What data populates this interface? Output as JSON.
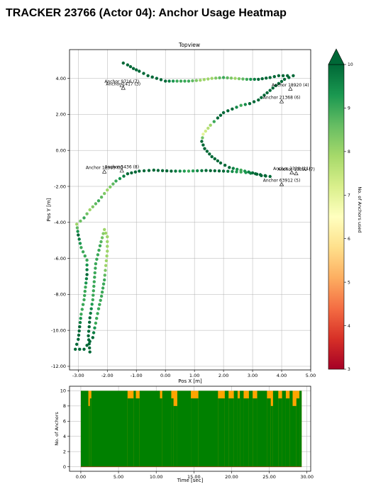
{
  "page": {
    "title": "TRACKER 23766 (Actor 04): Anchor Usage Heatmap"
  },
  "chart_data": [
    {
      "type": "scatter",
      "title": "Topview",
      "xlabel": "Pos X [m]",
      "ylabel": "Pos Y [m]",
      "xlim": [
        -3.3,
        5.0
      ],
      "ylim": [
        -12.2,
        5.6
      ],
      "xticks": [
        "-3.00",
        "-2.00",
        "-1.00",
        "0.00",
        "1.00",
        "2.00",
        "3.00",
        "4.00",
        "5.00"
      ],
      "xtick_values": [
        -3,
        -2,
        -1,
        0,
        1,
        2,
        3,
        4,
        5
      ],
      "yticks": [
        "-12.00",
        "-10.00",
        "-8.00",
        "-6.00",
        "-4.00",
        "-2.00",
        "0.00",
        "2.00",
        "4.00"
      ],
      "ytick_values": [
        -12,
        -10,
        -8,
        -6,
        -4,
        -2,
        0,
        2,
        4
      ],
      "grid": true,
      "colormap": {
        "name": "RdYlGn",
        "min": 3,
        "max": 10,
        "label": "No. of Anchors used",
        "ticks": [
          "3",
          "4",
          "5",
          "6",
          "7",
          "8",
          "9",
          "10"
        ]
      },
      "anchors": [
        {
          "label": "Anchor 18920 (4)",
          "x": 4.3,
          "y": 3.4
        },
        {
          "label": "Anchor 21368 (6)",
          "x": 4.0,
          "y": 2.7
        },
        {
          "label": "Anchor 9716 (7)",
          "x": -1.5,
          "y": 3.6
        },
        {
          "label": "Anchor 1417 (3)",
          "x": -1.45,
          "y": 3.45
        },
        {
          "label": "Anchor 63912 (5)",
          "x": 4.0,
          "y": -1.9
        },
        {
          "label": "Anchor 12989 (8)",
          "x": -2.1,
          "y": -1.2
        },
        {
          "label": "Anchor 5436 (8)",
          "x": -1.5,
          "y": -1.15
        },
        {
          "label": "Anchor 13392 (7)",
          "x": 4.5,
          "y": -1.3
        },
        {
          "label": "Anchor 3338 (11)",
          "x": 4.35,
          "y": -1.25
        }
      ],
      "path": [
        [
          -1.45,
          4.85
        ],
        [
          -1.3,
          4.75
        ],
        [
          -1.1,
          4.55
        ],
        [
          -0.9,
          4.4
        ],
        [
          -0.6,
          4.15
        ],
        [
          -0.3,
          4.0
        ],
        [
          0.0,
          3.85
        ],
        [
          0.4,
          3.85
        ],
        [
          0.8,
          3.85
        ],
        [
          1.2,
          3.9
        ],
        [
          1.6,
          4.0
        ],
        [
          2.0,
          4.05
        ],
        [
          2.4,
          4.0
        ],
        [
          2.8,
          3.95
        ],
        [
          3.2,
          3.95
        ],
        [
          3.6,
          4.05
        ],
        [
          3.9,
          4.15
        ],
        [
          4.2,
          4.15
        ],
        [
          4.4,
          4.15
        ],
        [
          4.1,
          3.95
        ],
        [
          3.8,
          3.6
        ],
        [
          3.5,
          3.2
        ],
        [
          3.2,
          2.8
        ],
        [
          2.9,
          2.6
        ],
        [
          2.6,
          2.5
        ],
        [
          2.3,
          2.3
        ],
        [
          2.0,
          2.1
        ],
        [
          1.8,
          1.8
        ],
        [
          1.55,
          1.4
        ],
        [
          1.3,
          0.9
        ],
        [
          1.25,
          0.5
        ],
        [
          1.35,
          0.1
        ],
        [
          1.6,
          -0.35
        ],
        [
          1.9,
          -0.7
        ],
        [
          2.2,
          -0.95
        ],
        [
          2.6,
          -1.1
        ],
        [
          3.0,
          -1.25
        ],
        [
          3.3,
          -1.4
        ],
        [
          3.6,
          -1.45
        ],
        [
          3.1,
          -1.3
        ],
        [
          2.6,
          -1.2
        ],
        [
          2.0,
          -1.15
        ],
        [
          1.4,
          -1.12
        ],
        [
          0.8,
          -1.15
        ],
        [
          0.2,
          -1.15
        ],
        [
          -0.4,
          -1.1
        ],
        [
          -0.9,
          -1.15
        ],
        [
          -1.3,
          -1.3
        ],
        [
          -1.7,
          -1.7
        ],
        [
          -2.0,
          -2.2
        ],
        [
          -2.3,
          -2.8
        ],
        [
          -2.6,
          -3.3
        ],
        [
          -2.8,
          -3.75
        ],
        [
          -3.05,
          -4.1
        ],
        [
          -3.0,
          -4.7
        ],
        [
          -2.9,
          -5.4
        ],
        [
          -2.7,
          -6.1
        ],
        [
          -2.7,
          -6.9
        ],
        [
          -2.75,
          -7.6
        ],
        [
          -2.8,
          -8.3
        ],
        [
          -2.9,
          -9.1
        ],
        [
          -2.95,
          -9.8
        ],
        [
          -3.0,
          -10.5
        ],
        [
          -3.1,
          -11.05
        ],
        [
          -2.8,
          -11.05
        ],
        [
          -2.5,
          -10.4
        ],
        [
          -2.4,
          -9.6
        ],
        [
          -2.3,
          -8.8
        ],
        [
          -2.2,
          -8.1
        ],
        [
          -2.1,
          -7.2
        ],
        [
          -2.05,
          -6.4
        ],
        [
          -2.0,
          -5.6
        ],
        [
          -2.0,
          -4.8
        ],
        [
          -2.1,
          -4.4
        ],
        [
          -2.25,
          -5.3
        ],
        [
          -2.4,
          -6.3
        ],
        [
          -2.45,
          -7.3
        ],
        [
          -2.5,
          -8.3
        ],
        [
          -2.6,
          -9.3
        ],
        [
          -2.65,
          -10.3
        ],
        [
          -2.6,
          -11.2
        ]
      ],
      "path_greenness": [
        10,
        10,
        10,
        10,
        10,
        10,
        10,
        9,
        9,
        8,
        8,
        9,
        8,
        9,
        10,
        10,
        10,
        10,
        10,
        10,
        10,
        10,
        10,
        10,
        9,
        10,
        10,
        10,
        8,
        7,
        10,
        10,
        10,
        10,
        10,
        9,
        10,
        10,
        10,
        10,
        9,
        10,
        10,
        9,
        10,
        10,
        10,
        10,
        9,
        8,
        9,
        8,
        9,
        8,
        10,
        9,
        9,
        10,
        9,
        9,
        9,
        10,
        10,
        10,
        10,
        10,
        9,
        9,
        9,
        9,
        8,
        8,
        8,
        8,
        9,
        9,
        9,
        9,
        10,
        10,
        10
      ]
    },
    {
      "type": "area",
      "xlabel": "Time [sec]",
      "ylabel": "No. of Anchors",
      "xlim": [
        -1.5,
        30.5
      ],
      "ylim": [
        -0.6,
        10.6
      ],
      "xticks": [
        "0.00",
        "5.00",
        "10.00",
        "15.00",
        "20.00",
        "25.00",
        "30.00"
      ],
      "xtick_values": [
        0,
        5,
        10,
        15,
        20,
        25,
        30
      ],
      "yticks": [
        "0",
        "2",
        "4",
        "6",
        "8",
        "10"
      ],
      "ytick_values": [
        0,
        2,
        4,
        6,
        8,
        10
      ],
      "grid": true,
      "colors": {
        "anchors_used": "#008000",
        "missing": "#ffa500"
      },
      "segments": [
        [
          0.0,
          1.0,
          10
        ],
        [
          1.0,
          1.2,
          8
        ],
        [
          1.2,
          1.4,
          9
        ],
        [
          1.4,
          6.2,
          10
        ],
        [
          6.2,
          7.0,
          9
        ],
        [
          7.0,
          7.3,
          10
        ],
        [
          7.3,
          7.8,
          9
        ],
        [
          7.8,
          10.5,
          10
        ],
        [
          10.5,
          10.8,
          9
        ],
        [
          10.8,
          12.0,
          10
        ],
        [
          12.0,
          12.3,
          9
        ],
        [
          12.3,
          12.8,
          8
        ],
        [
          12.8,
          14.6,
          10
        ],
        [
          14.6,
          15.6,
          9
        ],
        [
          15.6,
          18.2,
          10
        ],
        [
          18.2,
          19.1,
          9
        ],
        [
          19.1,
          19.6,
          10
        ],
        [
          19.6,
          20.3,
          9
        ],
        [
          20.3,
          20.8,
          10
        ],
        [
          20.8,
          21.1,
          9
        ],
        [
          21.1,
          21.6,
          10
        ],
        [
          21.6,
          22.3,
          9
        ],
        [
          22.3,
          22.8,
          10
        ],
        [
          22.8,
          23.4,
          9
        ],
        [
          23.4,
          24.7,
          10
        ],
        [
          24.7,
          25.2,
          9
        ],
        [
          25.2,
          25.5,
          8
        ],
        [
          25.5,
          26.2,
          10
        ],
        [
          26.2,
          26.7,
          9
        ],
        [
          26.7,
          27.2,
          10
        ],
        [
          27.2,
          27.7,
          9
        ],
        [
          27.7,
          28.1,
          10
        ],
        [
          28.1,
          28.6,
          8
        ],
        [
          28.6,
          29.0,
          9
        ],
        [
          29.0,
          29.3,
          10
        ]
      ]
    }
  ]
}
